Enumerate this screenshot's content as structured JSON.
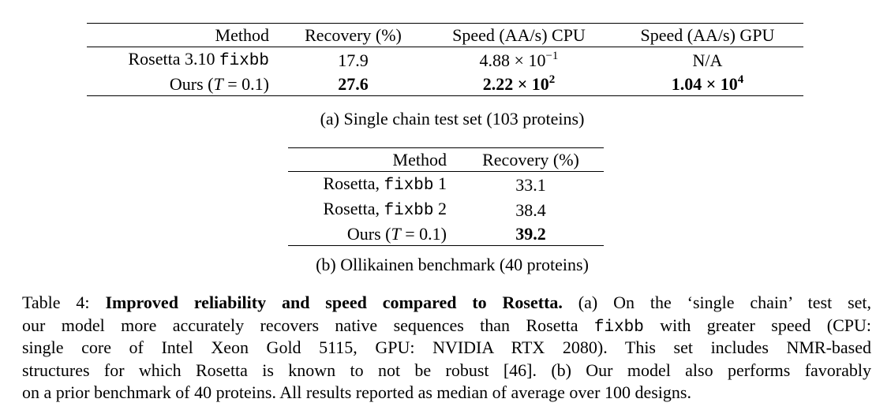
{
  "table_a": {
    "header": [
      "Method",
      "Recovery (%)",
      "Speed (AA/s) CPU",
      "Speed (AA/s) GPU"
    ],
    "rows": [
      [
        [
          "Rosetta 3.10 ",
          "fixbb"
        ],
        17.9,
        [
          "4.88 × 10",
          "−1"
        ],
        "N/A"
      ],
      [
        [
          "Ours (",
          "T",
          " = 0.1)"
        ],
        27.6,
        [
          "2.22 × 10",
          "2"
        ],
        [
          "1.04 × 10",
          "4"
        ]
      ]
    ],
    "caption": "(a) Single chain test set (103 proteins)"
  },
  "table_b": {
    "header": [
      "Method",
      "Recovery (%)"
    ],
    "rows": [
      [
        [
          "Rosetta, ",
          "fixbb",
          " 1"
        ],
        33.1
      ],
      [
        [
          "Rosetta, ",
          "fixbb",
          " 2"
        ],
        38.4
      ],
      [
        [
          "Ours (",
          "T",
          " = 0.1)"
        ],
        39.2
      ]
    ],
    "caption": "(b) Ollikainen benchmark (40 proteins)"
  },
  "caption": {
    "lines": [
      [
        "Table 4: ",
        "Improved reliability and speed compared to Rosetta.",
        " (a) On the ‘single chain’ test set,"
      ],
      [
        "our model more accurately recovers native sequences than Rosetta ",
        "fixbb",
        " with greater speed (CPU:"
      ],
      [
        "single core of Intel Xeon Gold 5115, GPU: NVIDIA RTX 2080).  This set includes NMR-based"
      ],
      [
        "structures for which Rosetta is known to not be robust [46]. (b) Our model also performs favorably"
      ],
      [
        "on a prior benchmark of 40 proteins. All results reported as median of average over 100 designs."
      ]
    ]
  }
}
